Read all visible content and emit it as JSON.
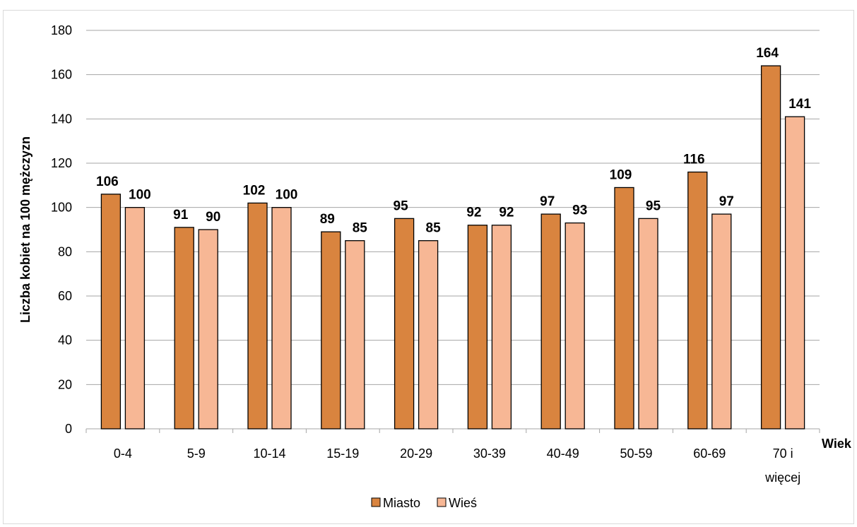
{
  "chart_data": {
    "type": "bar",
    "title": "",
    "ylabel": "Liczba kobiet na 100 mężczyzn",
    "xlabel": "Wiek",
    "ylim": [
      0,
      180
    ],
    "ytick_step": 20,
    "grid": true,
    "legend_position": "bottom",
    "categories": [
      "0-4",
      "5-9",
      "10-14",
      "15-19",
      "20-29",
      "30-39",
      "40-49",
      "50-59",
      "60-69",
      "70 i więcej"
    ],
    "series": [
      {
        "name": "Miasto",
        "color": "#d9843f",
        "values": [
          106,
          91,
          102,
          89,
          95,
          92,
          97,
          109,
          116,
          164
        ]
      },
      {
        "name": "Wieś",
        "color": "#f7b795",
        "values": [
          100,
          90,
          100,
          85,
          85,
          92,
          93,
          95,
          97,
          141
        ]
      }
    ]
  }
}
